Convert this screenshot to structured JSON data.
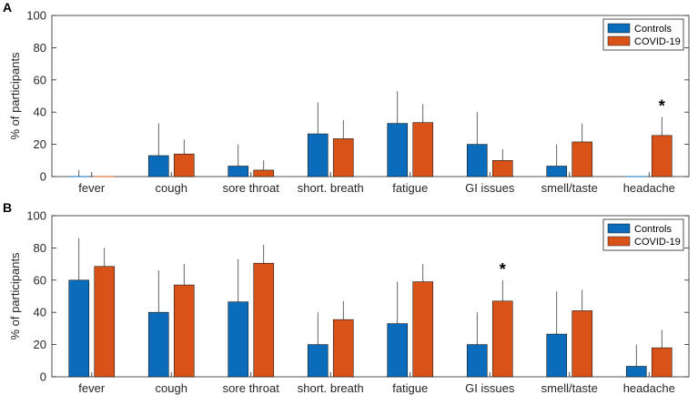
{
  "colors": {
    "controls": "#0a6cba",
    "covid": "#d95319"
  },
  "chart_data": [
    {
      "type": "bar",
      "panel_label": "A",
      "ylabel": "% of participants",
      "ylim": [
        0,
        100
      ],
      "yticks": [
        "0",
        "20",
        "40",
        "60",
        "80",
        "100"
      ],
      "legend_position": "top-right",
      "categories": [
        "fever",
        "cough",
        "sore throat",
        "short. breath",
        "fatigue",
        "GI issues",
        "smell/taste",
        "headache"
      ],
      "series": [
        {
          "name": "Controls",
          "values": [
            0,
            13,
            6.5,
            26.5,
            33,
            20,
            6.5,
            0
          ],
          "err_high": [
            4,
            33,
            20,
            46,
            53,
            40,
            20,
            0
          ]
        },
        {
          "name": "COVID-19",
          "values": [
            0,
            14,
            4,
            23.5,
            33.5,
            10,
            21.5,
            25.5
          ],
          "err_high": [
            0,
            23,
            10,
            35,
            45,
            17,
            33,
            37
          ]
        }
      ],
      "annotations": [
        {
          "text": "*",
          "category": "headache"
        }
      ]
    },
    {
      "type": "bar",
      "panel_label": "B",
      "ylabel": "% of participants",
      "ylim": [
        0,
        100
      ],
      "yticks": [
        "0",
        "20",
        "40",
        "60",
        "80",
        "100"
      ],
      "legend_position": "top-right",
      "categories": [
        "fever",
        "cough",
        "sore throat",
        "short. breath",
        "fatigue",
        "GI issues",
        "smell/taste",
        "headache"
      ],
      "series": [
        {
          "name": "Controls",
          "values": [
            60,
            40,
            46.5,
            20,
            33,
            20,
            26.5,
            6.5
          ],
          "err_high": [
            86,
            66,
            73,
            40,
            59,
            40,
            53,
            20
          ]
        },
        {
          "name": "COVID-19",
          "values": [
            68.5,
            57,
            70.5,
            35.5,
            59,
            47,
            41,
            18
          ],
          "err_high": [
            80,
            70,
            82,
            47,
            70,
            60,
            54,
            29
          ]
        }
      ],
      "annotations": [
        {
          "text": "*",
          "category": "GI issues"
        }
      ]
    }
  ]
}
